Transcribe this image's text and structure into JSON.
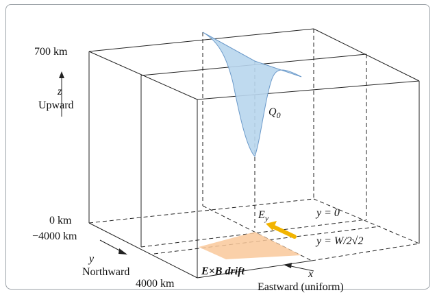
{
  "labels": {
    "z_top": "700 km",
    "z_axis_letter": "z",
    "z_axis_name": "Upward",
    "z_bottom": "0 km",
    "y_start": "−4000 km",
    "y_axis_letter": "y",
    "y_axis_name": "Northward",
    "y_end": "4000 km",
    "x_axis_letter": "x",
    "x_axis_name": "Eastward (uniform)",
    "source_main": "Q",
    "source_sub": "0",
    "field_main": "E",
    "field_sub": "y",
    "drift_label": "E×B drift",
    "plane_y0": "y = 0",
    "plane_yw": "y = W/2√2"
  },
  "colors": {
    "source_fill": "#b9d6ee",
    "source_stroke": "#5b8fc4",
    "drift_fill": "#f9c89a",
    "arrow": "#f2b400",
    "lines": "#222222"
  }
}
